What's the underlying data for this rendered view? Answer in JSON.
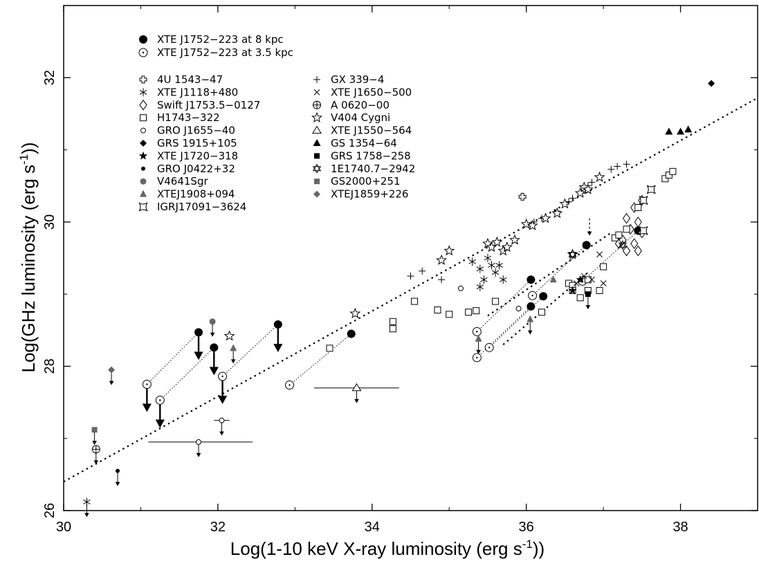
{
  "chart_data": {
    "type": "scatter",
    "xlabel": "Log(1-10 keV X-ray luminosity (erg s",
    "xlabel_sup": "-1",
    "xlabel_tail": "))",
    "ylabel": "Log(GHz luminosity (erg s",
    "ylabel_sup": "-1",
    "ylabel_tail": "))",
    "xlim": [
      30,
      39
    ],
    "ylim": [
      26,
      33
    ],
    "x_ticks": [
      "30",
      "32",
      "34",
      "36",
      "38"
    ],
    "x_tick_values": [
      30,
      32,
      34,
      36,
      38
    ],
    "y_ticks": [
      "26",
      "28",
      "30",
      "32"
    ],
    "y_tick_values": [
      26,
      28,
      30,
      32
    ],
    "grid": false,
    "legend_placement": "top-left",
    "legend_top": [
      {
        "label": "XTE J1752−223 at 8 kpc",
        "marker": "filled-circle-large"
      },
      {
        "label": "XTE J1752−223 at 3.5 kpc",
        "marker": "circle-dot"
      }
    ],
    "legend_left": [
      {
        "label": "4U 1543−47",
        "marker": "open-cross"
      },
      {
        "label": "XTE J1118+480",
        "marker": "asterisk"
      },
      {
        "label": "Swift J1753.5−0127",
        "marker": "open-diamond"
      },
      {
        "label": "H1743−322",
        "marker": "open-square"
      },
      {
        "label": "GRO J1655−40",
        "marker": "small-open-circle"
      },
      {
        "label": "GRS 1915+105",
        "marker": "filled-diamond"
      },
      {
        "label": "XTE J1720−318",
        "marker": "filled-star"
      },
      {
        "label": "GRO J0422+32",
        "marker": "small-filled-circle"
      },
      {
        "label": "V4641Sgr",
        "marker": "gray-circle"
      },
      {
        "label": "XTEJ1908+094",
        "marker": "gray-triangle"
      },
      {
        "label": "IGRJ17091−3624",
        "marker": "open-square-star"
      }
    ],
    "legend_right": [
      {
        "label": "GX 339−4",
        "marker": "plus"
      },
      {
        "label": "XTE J1650−500",
        "marker": "cross"
      },
      {
        "label": "A 0620−00",
        "marker": "circle-plus"
      },
      {
        "label": "V404 Cygni",
        "marker": "open-star"
      },
      {
        "label": "XTE J1550−564",
        "marker": "open-triangle"
      },
      {
        "label": "GS 1354−64",
        "marker": "filled-triangle"
      },
      {
        "label": "GRS 1758−258",
        "marker": "filled-square"
      },
      {
        "label": "1E1740.7−2942",
        "marker": "open-hexagram"
      },
      {
        "label": "GS2000+251",
        "marker": "gray-square"
      },
      {
        "label": "XTEJ1859+226",
        "marker": "gray-diamond"
      }
    ],
    "fit_lines": [
      {
        "x": [
          30.0,
          39.0
        ],
        "y": [
          26.4,
          31.72
        ],
        "style": "dotted"
      },
      {
        "x": [
          35.5,
          37.1
        ],
        "y": [
          28.7,
          29.85
        ],
        "style": "dotted"
      },
      {
        "x": [
          35.7,
          36.8
        ],
        "y": [
          28.3,
          29.3
        ],
        "style": "dotted"
      }
    ],
    "links": [
      {
        "x": [
          31.08,
          31.75
        ],
        "y": [
          27.75,
          28.47
        ]
      },
      {
        "x": [
          31.25,
          31.95
        ],
        "y": [
          27.53,
          28.26
        ]
      },
      {
        "x": [
          32.06,
          32.78
        ],
        "y": [
          27.86,
          28.58
        ]
      },
      {
        "x": [
          32.93,
          33.73
        ],
        "y": [
          27.74,
          28.45
        ]
      },
      {
        "x": [
          35.36,
          36.06
        ],
        "y": [
          28.48,
          29.2
        ]
      },
      {
        "x": [
          35.36,
          36.06
        ],
        "y": [
          28.12,
          28.83
        ]
      },
      {
        "x": [
          35.52,
          36.22
        ],
        "y": [
          28.26,
          28.97
        ]
      },
      {
        "x": [
          36.08,
          36.78
        ],
        "y": [
          28.98,
          29.68
        ]
      },
      {
        "x": [
          36.73,
          37.45
        ],
        "y": [
          29.18,
          29.88
        ]
      }
    ],
    "series": [
      {
        "name": "XTE J1752−223 at 8 kpc",
        "marker": "filled-circle-large",
        "points": [
          [
            31.75,
            28.47
          ],
          [
            31.95,
            28.26
          ],
          [
            32.78,
            28.58
          ],
          [
            33.73,
            28.45
          ],
          [
            36.06,
            29.2
          ],
          [
            36.06,
            28.83
          ],
          [
            36.22,
            28.97
          ],
          [
            36.78,
            29.68
          ],
          [
            37.45,
            29.88
          ]
        ],
        "upper_limit_arrows": [
          [
            31.75,
            28.47
          ],
          [
            31.95,
            28.26
          ],
          [
            32.78,
            28.58
          ]
        ]
      },
      {
        "name": "XTE J1752−223 at 3.5 kpc",
        "marker": "circle-dot",
        "points": [
          [
            31.08,
            27.75
          ],
          [
            31.25,
            27.53
          ],
          [
            32.06,
            27.86
          ],
          [
            32.93,
            27.74
          ],
          [
            35.36,
            28.48
          ],
          [
            35.36,
            28.12
          ],
          [
            35.52,
            28.26
          ],
          [
            36.08,
            28.98
          ],
          [
            36.73,
            29.18
          ]
        ],
        "upper_limit_arrows": [
          [
            31.08,
            27.75
          ],
          [
            31.25,
            27.53
          ],
          [
            32.06,
            27.86
          ]
        ]
      },
      {
        "name": "4U 1543−47",
        "marker": "open-cross",
        "points": [
          [
            35.95,
            30.35
          ]
        ]
      },
      {
        "name": "XTE J1118+480",
        "marker": "asterisk",
        "points": [
          [
            30.3,
            26.12
          ],
          [
            35.3,
            29.45
          ],
          [
            35.4,
            29.35
          ],
          [
            35.45,
            29.2
          ],
          [
            35.5,
            29.5
          ],
          [
            35.55,
            29.4
          ],
          [
            35.6,
            29.3
          ],
          [
            35.65,
            29.4
          ],
          [
            35.7,
            29.2
          ],
          [
            35.4,
            29.1
          ]
        ]
      },
      {
        "name": "Swift J1753.5−0127",
        "marker": "open-diamond",
        "points": [
          [
            37.2,
            29.7
          ],
          [
            37.3,
            29.6
          ],
          [
            37.4,
            29.7
          ],
          [
            37.5,
            29.85
          ],
          [
            37.35,
            29.9
          ],
          [
            37.45,
            30.0
          ],
          [
            37.3,
            30.05
          ],
          [
            37.25,
            29.75
          ],
          [
            37.4,
            30.2
          ],
          [
            37.5,
            30.3
          ],
          [
            37.45,
            29.6
          ]
        ]
      },
      {
        "name": "H1743−322",
        "marker": "open-square",
        "points": [
          [
            33.45,
            28.25
          ],
          [
            34.27,
            28.62
          ],
          [
            34.27,
            28.52
          ],
          [
            34.55,
            28.9
          ],
          [
            34.85,
            28.78
          ],
          [
            35.0,
            28.72
          ],
          [
            35.25,
            28.75
          ],
          [
            35.35,
            28.77
          ],
          [
            35.6,
            28.9
          ],
          [
            36.2,
            28.75
          ],
          [
            36.55,
            29.15
          ],
          [
            36.6,
            29.12
          ],
          [
            36.7,
            28.95
          ],
          [
            36.8,
            29.05
          ],
          [
            36.95,
            29.05
          ],
          [
            37.0,
            29.38
          ],
          [
            37.15,
            29.78
          ],
          [
            37.3,
            29.9
          ],
          [
            37.45,
            30.2
          ],
          [
            37.8,
            30.6
          ],
          [
            37.85,
            30.65
          ],
          [
            37.9,
            30.7
          ],
          [
            36.8,
            29.2
          ],
          [
            36.6,
            29.05
          ],
          [
            37.2,
            29.82
          ]
        ]
      },
      {
        "name": "GRO J1655−40",
        "marker": "small-open-circle",
        "points": [
          [
            31.75,
            26.95
          ],
          [
            32.05,
            27.25
          ],
          [
            35.15,
            29.08
          ],
          [
            35.9,
            28.8
          ]
        ]
      },
      {
        "name": "GRS 1915+105",
        "marker": "filled-diamond",
        "points": [
          [
            38.4,
            31.92
          ]
        ]
      },
      {
        "name": "XTE J1720−318",
        "marker": "filled-star",
        "points": [
          [
            36.6,
            29.05
          ],
          [
            36.7,
            29.2
          ]
        ]
      },
      {
        "name": "GRO J0422+32",
        "marker": "small-filled-circle",
        "points": [
          [
            30.7,
            26.55
          ]
        ]
      },
      {
        "name": "V4641Sgr",
        "marker": "gray-circle",
        "points": [
          [
            31.93,
            28.62
          ]
        ]
      },
      {
        "name": "XTEJ1908+094",
        "marker": "gray-triangle",
        "points": [
          [
            32.2,
            28.25
          ],
          [
            35.38,
            28.38
          ],
          [
            36.35,
            29.2
          ],
          [
            36.05,
            28.65
          ]
        ]
      },
      {
        "name": "IGRJ17091−3624",
        "marker": "open-square-star",
        "points": [
          [
            37.52,
            29.88
          ],
          [
            37.62,
            30.45
          ],
          [
            37.52,
            30.3
          ]
        ]
      },
      {
        "name": "GX 339−4",
        "marker": "plus",
        "points": [
          [
            34.5,
            29.25
          ],
          [
            34.65,
            29.32
          ],
          [
            34.9,
            29.2
          ],
          [
            36.1,
            30.0
          ],
          [
            36.2,
            30.05
          ],
          [
            36.4,
            30.15
          ],
          [
            36.55,
            30.28
          ],
          [
            36.6,
            30.33
          ],
          [
            36.72,
            30.4
          ],
          [
            36.8,
            30.5
          ],
          [
            36.85,
            30.55
          ],
          [
            37.1,
            30.73
          ],
          [
            37.18,
            30.77
          ],
          [
            37.3,
            30.8
          ]
        ]
      },
      {
        "name": "XTE J1650−500",
        "marker": "cross",
        "points": [
          [
            36.65,
            29.15
          ],
          [
            36.95,
            29.55
          ],
          [
            37.0,
            29.15
          ],
          [
            36.75,
            29.25
          ],
          [
            36.85,
            29.2
          ]
        ]
      },
      {
        "name": "A 0620−00",
        "marker": "circle-plus",
        "points": [
          [
            30.42,
            26.85
          ]
        ]
      },
      {
        "name": "V404 Cygni",
        "marker": "open-star",
        "points": [
          [
            32.15,
            28.42
          ],
          [
            33.78,
            28.73
          ],
          [
            34.9,
            29.47
          ],
          [
            35.0,
            29.6
          ],
          [
            35.5,
            29.7
          ],
          [
            35.55,
            29.65
          ],
          [
            35.62,
            29.72
          ],
          [
            35.7,
            29.6
          ],
          [
            35.75,
            29.65
          ],
          [
            35.85,
            29.75
          ],
          [
            36.0,
            29.97
          ],
          [
            36.08,
            29.95
          ],
          [
            36.25,
            30.05
          ],
          [
            36.4,
            30.12
          ],
          [
            36.5,
            30.25
          ],
          [
            36.7,
            30.4
          ],
          [
            36.75,
            30.48
          ],
          [
            36.8,
            30.45
          ],
          [
            36.6,
            29.55
          ],
          [
            36.95,
            30.62
          ]
        ]
      },
      {
        "name": "XTE J1550−564",
        "marker": "open-triangle",
        "points": [
          [
            33.8,
            27.7
          ]
        ]
      },
      {
        "name": "GS 1354−64",
        "marker": "filled-triangle",
        "points": [
          [
            37.85,
            31.25
          ],
          [
            38.0,
            31.25
          ],
          [
            38.1,
            31.28
          ]
        ]
      },
      {
        "name": "GRS 1758−258",
        "marker": "filled-square",
        "points": [
          [
            36.8,
            29.0
          ]
        ]
      },
      {
        "name": "1E1740.7−2942",
        "marker": "open-hexagram",
        "points": [
          [
            36.6,
            29.55
          ],
          [
            37.25,
            29.68
          ]
        ]
      },
      {
        "name": "GS2000+251",
        "marker": "gray-square",
        "points": [
          [
            30.4,
            27.12
          ]
        ]
      },
      {
        "name": "XTEJ1859+226",
        "marker": "gray-diamond",
        "points": [
          [
            30.62,
            27.95
          ]
        ]
      }
    ],
    "limit_arrows_thin": [
      [
        30.4,
        27.12
      ],
      [
        30.62,
        27.95
      ],
      [
        30.7,
        26.55
      ],
      [
        31.75,
        26.95
      ],
      [
        32.05,
        27.25
      ],
      [
        31.93,
        28.62
      ],
      [
        32.2,
        28.25
      ],
      [
        33.8,
        27.7
      ],
      [
        35.38,
        28.38
      ],
      [
        36.05,
        28.65
      ],
      [
        36.8,
        29.0
      ],
      [
        30.42,
        26.85
      ],
      [
        30.3,
        26.12
      ]
    ],
    "arrow_dashed": [
      36.82,
      30.05
    ],
    "error_bars_x": [
      {
        "x": [
          31.1,
          32.45
        ],
        "y": 26.95
      },
      {
        "x": [
          33.25,
          34.35
        ],
        "y": 27.7
      },
      {
        "x": [
          31.95,
          32.15
        ],
        "y": 27.25
      }
    ]
  }
}
